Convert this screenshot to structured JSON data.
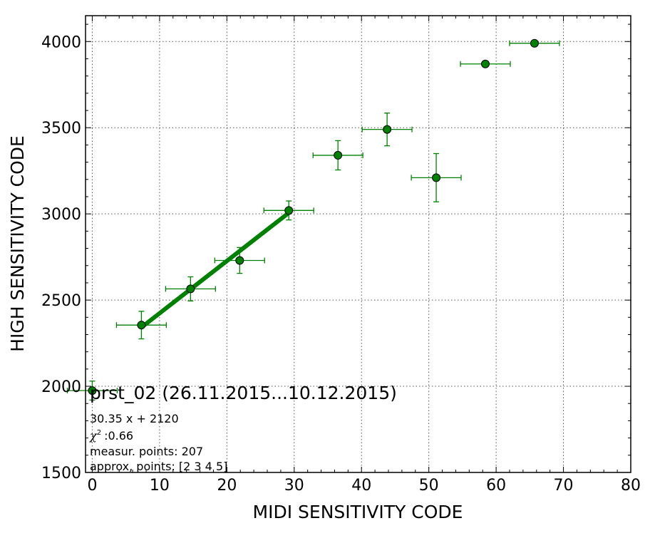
{
  "chart_data": {
    "type": "scatter",
    "xlabel": "MIDI SENSITIVITY CODE",
    "ylabel": "HIGH SENSITIVITY CODE",
    "xlim": [
      -1,
      80
    ],
    "ylim": [
      1500,
      4150
    ],
    "xticks": [
      0,
      10,
      20,
      30,
      40,
      50,
      60,
      70,
      80
    ],
    "yticks": [
      1500,
      2000,
      2500,
      3000,
      3500,
      4000
    ],
    "grid": true,
    "colors": {
      "points": "#008000",
      "fit_line": "#008000",
      "errorbars": "#008000"
    },
    "points": [
      {
        "x": 0.0,
        "y": 1975,
        "xerr": 3.7,
        "yerr": 55
      },
      {
        "x": 7.3,
        "y": 2355,
        "xerr": 3.7,
        "yerr": 80
      },
      {
        "x": 14.6,
        "y": 2565,
        "xerr": 3.7,
        "yerr": 70
      },
      {
        "x": 21.9,
        "y": 2730,
        "xerr": 3.7,
        "yerr": 75
      },
      {
        "x": 29.2,
        "y": 3020,
        "xerr": 3.7,
        "yerr": 55
      },
      {
        "x": 36.5,
        "y": 3340,
        "xerr": 3.7,
        "yerr": 85
      },
      {
        "x": 43.8,
        "y": 3490,
        "xerr": 3.7,
        "yerr": 95
      },
      {
        "x": 51.1,
        "y": 3210,
        "xerr": 3.7,
        "yerr": 140
      },
      {
        "x": 58.4,
        "y": 3870,
        "xerr": 3.7,
        "yerr": 0
      },
      {
        "x": 65.7,
        "y": 3990,
        "xerr": 3.7,
        "yerr": 0
      }
    ],
    "fit": {
      "slope": 30.35,
      "intercept": 2120,
      "x_range": [
        7.3,
        29.2
      ]
    },
    "annotations": {
      "title": "prst_02 (26.11.2015...10.12.2015)",
      "equation": "30.35 x + 2120",
      "chi2_symbol": "χ",
      "chi2_value": ":0.66",
      "measur_points": "measur. points: 207",
      "approx_points": "approx, points: [2 3 4 5]"
    }
  }
}
